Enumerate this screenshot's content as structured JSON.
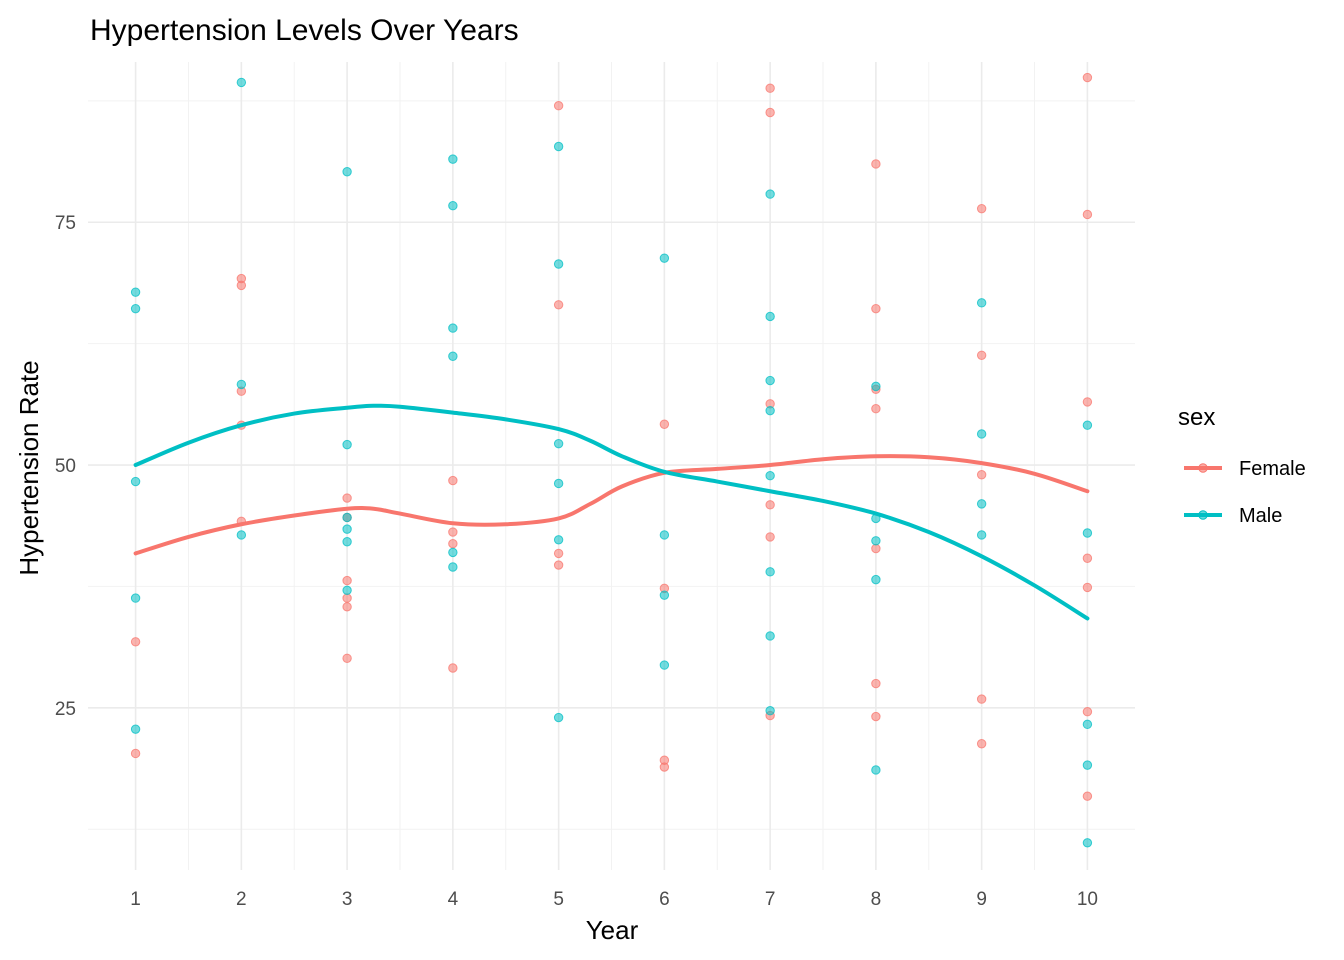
{
  "chart_data": {
    "type": "scatter",
    "title": "Hypertension Levels Over Years",
    "xlabel": "Year",
    "ylabel": "Hypertension Rate",
    "xlim": [
      0.55,
      10.45
    ],
    "ylim": [
      8.3,
      91.5
    ],
    "x_ticks": [
      1,
      2,
      3,
      4,
      5,
      6,
      7,
      8,
      9,
      10
    ],
    "y_ticks": [
      25,
      50,
      75
    ],
    "y_minor": [
      12.5,
      37.5,
      62.5,
      87.5
    ],
    "grid": true,
    "legend": {
      "title": "sex",
      "position": "right"
    },
    "series": [
      {
        "name": "Female",
        "color": "#F8766D",
        "points": [
          [
            1,
            31.8
          ],
          [
            1,
            20.3
          ],
          [
            2,
            69.2
          ],
          [
            2,
            68.5
          ],
          [
            2,
            57.6
          ],
          [
            2,
            54.1
          ],
          [
            2,
            44.2
          ],
          [
            3,
            46.6
          ],
          [
            3,
            44.6
          ],
          [
            3,
            38.1
          ],
          [
            3,
            36.3
          ],
          [
            3,
            35.4
          ],
          [
            3,
            30.1
          ],
          [
            4,
            48.4
          ],
          [
            4,
            43.1
          ],
          [
            4,
            41.9
          ],
          [
            4,
            29.1
          ],
          [
            5,
            87.0
          ],
          [
            5,
            66.5
          ],
          [
            5,
            40.9
          ],
          [
            5,
            39.7
          ],
          [
            6,
            54.2
          ],
          [
            6,
            37.3
          ],
          [
            6,
            19.6
          ],
          [
            6,
            18.9
          ],
          [
            7,
            88.8
          ],
          [
            7,
            86.3
          ],
          [
            7,
            56.3
          ],
          [
            7,
            45.9
          ],
          [
            7,
            42.6
          ],
          [
            7,
            24.2
          ],
          [
            8,
            81.0
          ],
          [
            8,
            66.1
          ],
          [
            8,
            57.8
          ],
          [
            8,
            55.8
          ],
          [
            8,
            41.4
          ],
          [
            8,
            27.5
          ],
          [
            8,
            24.1
          ],
          [
            9,
            76.4
          ],
          [
            9,
            61.3
          ],
          [
            9,
            49.0
          ],
          [
            9,
            25.9
          ],
          [
            9,
            21.3
          ],
          [
            10,
            89.9
          ],
          [
            10,
            75.8
          ],
          [
            10,
            56.5
          ],
          [
            10,
            40.4
          ],
          [
            10,
            37.4
          ],
          [
            10,
            24.6
          ],
          [
            10,
            15.9
          ]
        ],
        "smooth": [
          [
            1,
            40.9
          ],
          [
            1.5,
            42.6
          ],
          [
            2,
            43.9
          ],
          [
            2.5,
            44.8
          ],
          [
            3,
            45.5
          ],
          [
            3.25,
            45.5
          ],
          [
            3.5,
            45.0
          ],
          [
            4,
            44.0
          ],
          [
            4.5,
            43.9
          ],
          [
            5,
            44.5
          ],
          [
            5.3,
            46.0
          ],
          [
            5.6,
            47.8
          ],
          [
            6,
            49.2
          ],
          [
            6.5,
            49.6
          ],
          [
            7,
            50.0
          ],
          [
            7.5,
            50.6
          ],
          [
            8,
            50.9
          ],
          [
            8.5,
            50.8
          ],
          [
            9,
            50.2
          ],
          [
            9.5,
            49.1
          ],
          [
            10,
            47.3
          ]
        ]
      },
      {
        "name": "Male",
        "color": "#00BFC4",
        "points": [
          [
            1,
            67.8
          ],
          [
            1,
            66.1
          ],
          [
            1,
            48.3
          ],
          [
            1,
            36.3
          ],
          [
            1,
            22.8
          ],
          [
            2,
            89.4
          ],
          [
            2,
            58.3
          ],
          [
            2,
            42.8
          ],
          [
            3,
            80.2
          ],
          [
            3,
            52.1
          ],
          [
            3,
            44.6
          ],
          [
            3,
            43.4
          ],
          [
            3,
            42.1
          ],
          [
            3,
            37.1
          ],
          [
            4,
            81.5
          ],
          [
            4,
            76.7
          ],
          [
            4,
            64.1
          ],
          [
            4,
            61.2
          ],
          [
            4,
            41.0
          ],
          [
            4,
            39.5
          ],
          [
            5,
            82.8
          ],
          [
            5,
            70.7
          ],
          [
            5,
            52.2
          ],
          [
            5,
            48.1
          ],
          [
            5,
            42.3
          ],
          [
            5,
            24.0
          ],
          [
            6,
            71.3
          ],
          [
            6,
            42.8
          ],
          [
            6,
            36.6
          ],
          [
            6,
            29.4
          ],
          [
            7,
            77.9
          ],
          [
            7,
            65.3
          ],
          [
            7,
            58.7
          ],
          [
            7,
            55.6
          ],
          [
            7,
            48.9
          ],
          [
            7,
            39.0
          ],
          [
            7,
            32.4
          ],
          [
            7,
            24.7
          ],
          [
            8,
            58.1
          ],
          [
            8,
            44.5
          ],
          [
            8,
            42.2
          ],
          [
            8,
            38.2
          ],
          [
            8,
            18.6
          ],
          [
            9,
            66.7
          ],
          [
            9,
            53.2
          ],
          [
            9,
            46.0
          ],
          [
            9,
            42.8
          ],
          [
            10,
            54.1
          ],
          [
            10,
            43.0
          ],
          [
            10,
            23.3
          ],
          [
            10,
            19.1
          ],
          [
            10,
            11.1
          ]
        ],
        "smooth": [
          [
            1,
            50.0
          ],
          [
            1.5,
            52.3
          ],
          [
            2,
            54.1
          ],
          [
            2.5,
            55.3
          ],
          [
            3,
            55.9
          ],
          [
            3.25,
            56.1
          ],
          [
            3.5,
            56.0
          ],
          [
            4,
            55.4
          ],
          [
            4.5,
            54.7
          ],
          [
            5,
            53.7
          ],
          [
            5.3,
            52.5
          ],
          [
            5.6,
            50.9
          ],
          [
            6,
            49.3
          ],
          [
            6.5,
            48.3
          ],
          [
            7,
            47.3
          ],
          [
            7.5,
            46.3
          ],
          [
            8,
            45.0
          ],
          [
            8.5,
            43.1
          ],
          [
            9,
            40.6
          ],
          [
            9.5,
            37.6
          ],
          [
            10,
            34.2
          ]
        ]
      }
    ]
  }
}
